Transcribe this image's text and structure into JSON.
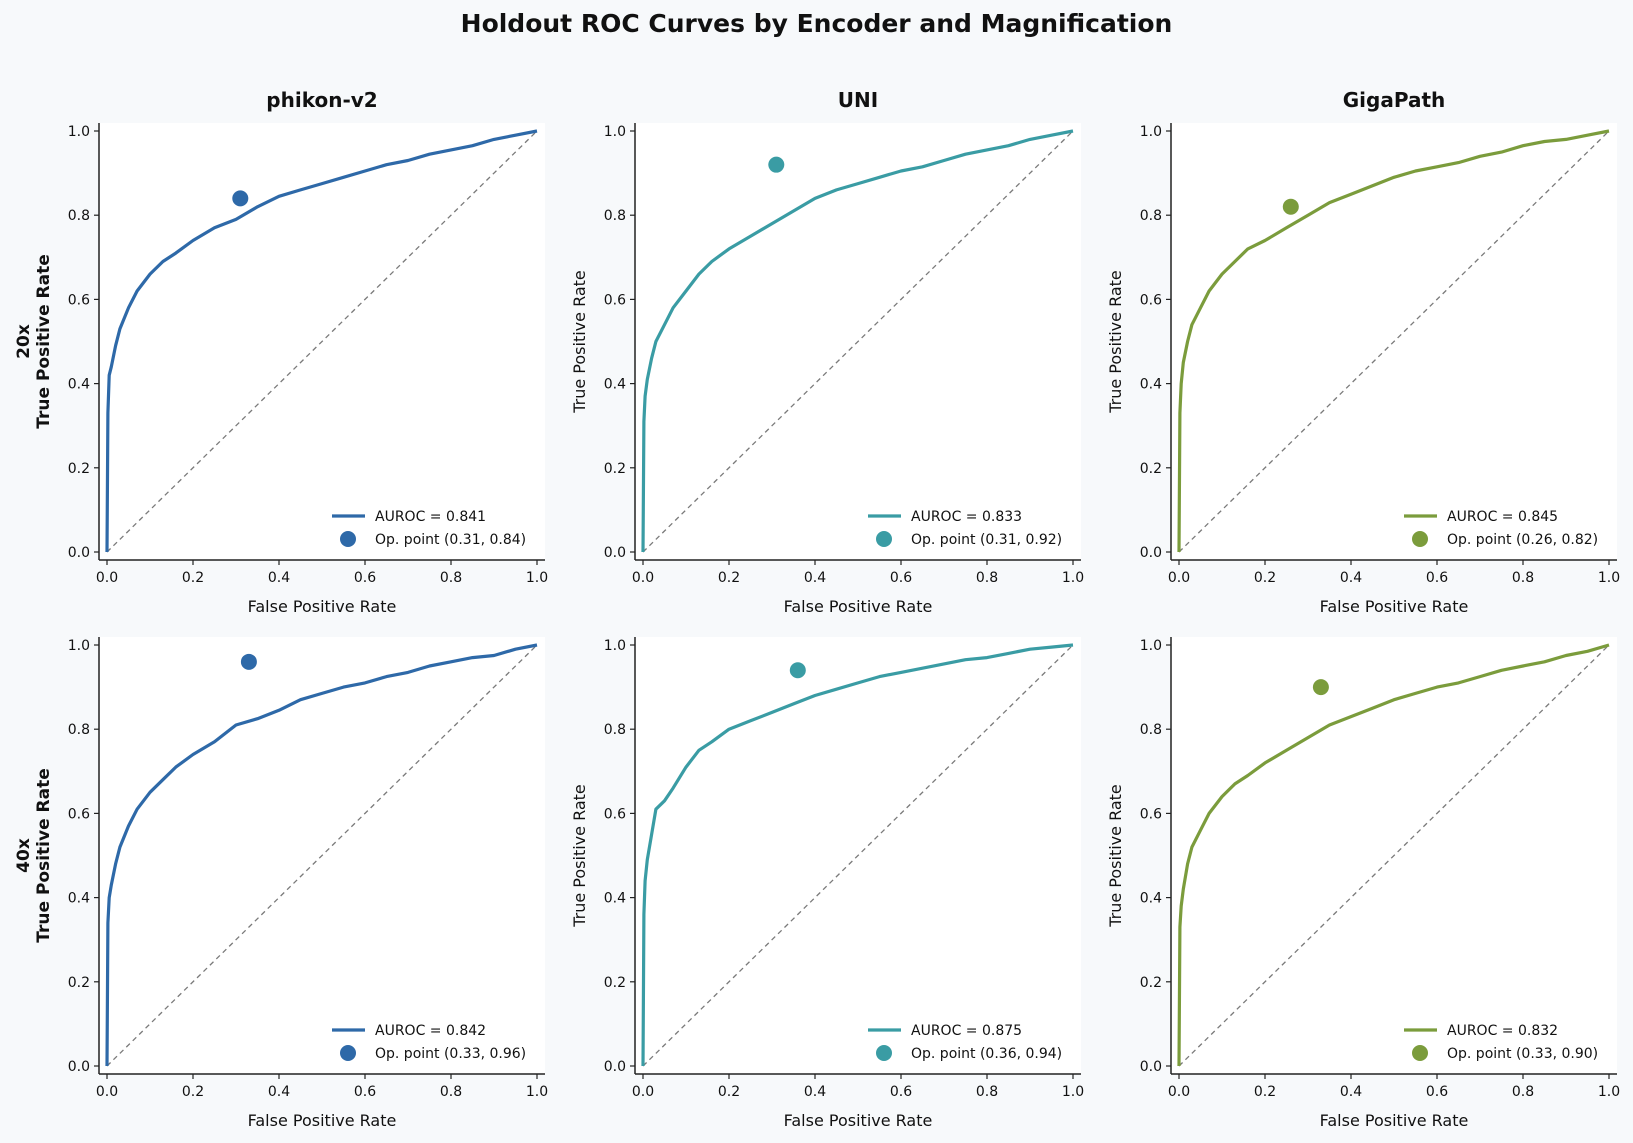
{
  "title": "Holdout ROC Curves by Encoder and Magnification",
  "colors": {
    "phikon-v2": "#2e69a8",
    "UNI": "#3a9ca4",
    "GigaPath": "#7b9c3c",
    "diagonal": "#7a7a7a"
  },
  "chart_data": [
    {
      "type": "line",
      "encoder": "phikon-v2",
      "row_label": "20x",
      "title": "phikon-v2",
      "xlabel": "False Positive Rate",
      "ylabel": "True Positive Rate",
      "xlim": [
        0,
        1
      ],
      "ylim": [
        0,
        1
      ],
      "ticks": [
        "0.0",
        "0.2",
        "0.4",
        "0.6",
        "0.8",
        "1.0"
      ],
      "legend_placement": "lower-right",
      "series": [
        {
          "name": "AUROC = 0.841",
          "kind": "roc",
          "x": [
            0,
            0.002,
            0.005,
            0.01,
            0.02,
            0.03,
            0.05,
            0.07,
            0.1,
            0.13,
            0.16,
            0.2,
            0.25,
            0.3,
            0.35,
            0.4,
            0.45,
            0.5,
            0.55,
            0.6,
            0.65,
            0.7,
            0.75,
            0.8,
            0.85,
            0.9,
            0.95,
            1.0
          ],
          "y": [
            0,
            0.33,
            0.42,
            0.44,
            0.49,
            0.53,
            0.58,
            0.62,
            0.66,
            0.69,
            0.71,
            0.74,
            0.77,
            0.79,
            0.82,
            0.845,
            0.86,
            0.875,
            0.89,
            0.905,
            0.92,
            0.93,
            0.945,
            0.955,
            0.965,
            0.98,
            0.99,
            1.0
          ]
        },
        {
          "name": "Op. point (0.31, 0.84)",
          "kind": "point",
          "x": [
            0.31
          ],
          "y": [
            0.84
          ]
        }
      ]
    },
    {
      "type": "line",
      "encoder": "UNI",
      "title": "UNI",
      "xlabel": "False Positive Rate",
      "ylabel": "True Positive Rate",
      "xlim": [
        0,
        1
      ],
      "ylim": [
        0,
        1
      ],
      "ticks": [
        "0.0",
        "0.2",
        "0.4",
        "0.6",
        "0.8",
        "1.0"
      ],
      "legend_placement": "lower-right",
      "series": [
        {
          "name": "AUROC = 0.833",
          "kind": "roc",
          "x": [
            0,
            0.002,
            0.005,
            0.01,
            0.02,
            0.03,
            0.05,
            0.07,
            0.1,
            0.13,
            0.16,
            0.2,
            0.25,
            0.3,
            0.35,
            0.4,
            0.45,
            0.5,
            0.55,
            0.6,
            0.65,
            0.7,
            0.75,
            0.8,
            0.85,
            0.9,
            0.95,
            1.0
          ],
          "y": [
            0,
            0.31,
            0.37,
            0.41,
            0.46,
            0.5,
            0.54,
            0.58,
            0.62,
            0.66,
            0.69,
            0.72,
            0.75,
            0.78,
            0.81,
            0.84,
            0.86,
            0.875,
            0.89,
            0.905,
            0.915,
            0.93,
            0.945,
            0.955,
            0.965,
            0.98,
            0.99,
            1.0
          ]
        },
        {
          "name": "Op. point (0.31, 0.92)",
          "kind": "point",
          "x": [
            0.31
          ],
          "y": [
            0.92
          ]
        }
      ]
    },
    {
      "type": "line",
      "encoder": "GigaPath",
      "title": "GigaPath",
      "xlabel": "False Positive Rate",
      "ylabel": "True Positive Rate",
      "xlim": [
        0,
        1
      ],
      "ylim": [
        0,
        1
      ],
      "ticks": [
        "0.0",
        "0.2",
        "0.4",
        "0.6",
        "0.8",
        "1.0"
      ],
      "legend_placement": "lower-right",
      "series": [
        {
          "name": "AUROC = 0.845",
          "kind": "roc",
          "x": [
            0,
            0.002,
            0.005,
            0.01,
            0.02,
            0.03,
            0.05,
            0.07,
            0.1,
            0.13,
            0.16,
            0.2,
            0.25,
            0.3,
            0.35,
            0.4,
            0.45,
            0.5,
            0.55,
            0.6,
            0.65,
            0.7,
            0.75,
            0.8,
            0.85,
            0.9,
            0.95,
            1.0
          ],
          "y": [
            0,
            0.33,
            0.4,
            0.45,
            0.5,
            0.54,
            0.58,
            0.62,
            0.66,
            0.69,
            0.72,
            0.74,
            0.77,
            0.8,
            0.83,
            0.85,
            0.87,
            0.89,
            0.905,
            0.915,
            0.925,
            0.94,
            0.95,
            0.965,
            0.975,
            0.98,
            0.99,
            1.0
          ]
        },
        {
          "name": "Op. point (0.26, 0.82)",
          "kind": "point",
          "x": [
            0.26
          ],
          "y": [
            0.82
          ]
        }
      ]
    },
    {
      "type": "line",
      "encoder": "phikon-v2",
      "row_label": "40x",
      "title": "",
      "xlabel": "False Positive Rate",
      "ylabel": "True Positive Rate",
      "xlim": [
        0,
        1
      ],
      "ylim": [
        0,
        1
      ],
      "ticks": [
        "0.0",
        "0.2",
        "0.4",
        "0.6",
        "0.8",
        "1.0"
      ],
      "legend_placement": "lower-right",
      "series": [
        {
          "name": "AUROC = 0.842",
          "kind": "roc",
          "x": [
            0,
            0.002,
            0.005,
            0.01,
            0.02,
            0.03,
            0.05,
            0.07,
            0.1,
            0.13,
            0.16,
            0.2,
            0.25,
            0.3,
            0.35,
            0.4,
            0.45,
            0.5,
            0.55,
            0.6,
            0.65,
            0.7,
            0.75,
            0.8,
            0.85,
            0.9,
            0.95,
            1.0
          ],
          "y": [
            0,
            0.34,
            0.4,
            0.43,
            0.48,
            0.52,
            0.57,
            0.61,
            0.65,
            0.68,
            0.71,
            0.74,
            0.77,
            0.81,
            0.825,
            0.845,
            0.87,
            0.885,
            0.9,
            0.91,
            0.925,
            0.935,
            0.95,
            0.96,
            0.97,
            0.975,
            0.99,
            1.0
          ]
        },
        {
          "name": "Op. point (0.33, 0.96)",
          "kind": "point",
          "x": [
            0.33
          ],
          "y": [
            0.96
          ]
        }
      ]
    },
    {
      "type": "line",
      "encoder": "UNI",
      "title": "",
      "xlabel": "False Positive Rate",
      "ylabel": "True Positive Rate",
      "xlim": [
        0,
        1
      ],
      "ylim": [
        0,
        1
      ],
      "ticks": [
        "0.0",
        "0.2",
        "0.4",
        "0.6",
        "0.8",
        "1.0"
      ],
      "legend_placement": "lower-right",
      "series": [
        {
          "name": "AUROC = 0.875",
          "kind": "roc",
          "x": [
            0,
            0.002,
            0.005,
            0.01,
            0.02,
            0.03,
            0.05,
            0.07,
            0.1,
            0.13,
            0.16,
            0.2,
            0.25,
            0.3,
            0.35,
            0.4,
            0.45,
            0.5,
            0.55,
            0.6,
            0.65,
            0.7,
            0.75,
            0.8,
            0.85,
            0.9,
            0.95,
            1.0
          ],
          "y": [
            0,
            0.36,
            0.44,
            0.49,
            0.55,
            0.61,
            0.63,
            0.66,
            0.71,
            0.75,
            0.77,
            0.8,
            0.82,
            0.84,
            0.86,
            0.88,
            0.895,
            0.91,
            0.925,
            0.935,
            0.945,
            0.955,
            0.965,
            0.97,
            0.98,
            0.99,
            0.995,
            1.0
          ]
        },
        {
          "name": "Op. point (0.36, 0.94)",
          "kind": "point",
          "x": [
            0.36
          ],
          "y": [
            0.94
          ]
        }
      ]
    },
    {
      "type": "line",
      "encoder": "GigaPath",
      "title": "",
      "xlabel": "False Positive Rate",
      "ylabel": "True Positive Rate",
      "xlim": [
        0,
        1
      ],
      "ylim": [
        0,
        1
      ],
      "ticks": [
        "0.0",
        "0.2",
        "0.4",
        "0.6",
        "0.8",
        "1.0"
      ],
      "legend_placement": "lower-right",
      "series": [
        {
          "name": "AUROC = 0.832",
          "kind": "roc",
          "x": [
            0,
            0.002,
            0.005,
            0.01,
            0.02,
            0.03,
            0.05,
            0.07,
            0.1,
            0.13,
            0.16,
            0.2,
            0.25,
            0.3,
            0.35,
            0.4,
            0.45,
            0.5,
            0.55,
            0.6,
            0.65,
            0.7,
            0.75,
            0.8,
            0.85,
            0.9,
            0.95,
            1.0
          ],
          "y": [
            0,
            0.33,
            0.38,
            0.42,
            0.48,
            0.52,
            0.56,
            0.6,
            0.64,
            0.67,
            0.69,
            0.72,
            0.75,
            0.78,
            0.81,
            0.83,
            0.85,
            0.87,
            0.885,
            0.9,
            0.91,
            0.925,
            0.94,
            0.95,
            0.96,
            0.975,
            0.985,
            1.0
          ]
        },
        {
          "name": "Op. point (0.33, 0.90)",
          "kind": "point",
          "x": [
            0.33
          ],
          "y": [
            0.9
          ]
        }
      ]
    }
  ]
}
